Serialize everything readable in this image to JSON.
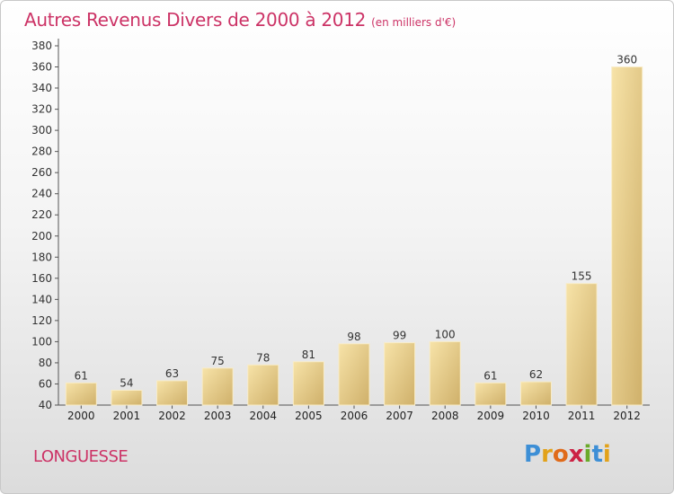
{
  "chart_data": {
    "type": "bar",
    "title": "Autres Revenus Divers de 2000 à 2012",
    "subtitle": "(en milliers d'€)",
    "categories": [
      "2000",
      "2001",
      "2002",
      "2003",
      "2004",
      "2005",
      "2006",
      "2007",
      "2008",
      "2009",
      "2010",
      "2011",
      "2012"
    ],
    "values": [
      61,
      54,
      63,
      75,
      78,
      81,
      98,
      99,
      100,
      61,
      62,
      155,
      360
    ],
    "ylim": [
      40,
      380
    ],
    "yticks": [
      40,
      60,
      80,
      100,
      120,
      140,
      160,
      180,
      200,
      220,
      240,
      260,
      280,
      300,
      320,
      340,
      360,
      380
    ],
    "grid": false,
    "bar_color": "#e8cc80"
  },
  "location": "LONGUESSE",
  "logo": {
    "letters": [
      "P",
      "r",
      "o",
      "x",
      "i",
      "t",
      "i"
    ],
    "colors": [
      "#3d8fd6",
      "#e2a21a",
      "#e06b1a",
      "#cc2244",
      "#6aaa2a",
      "#3d8fd6",
      "#e2a21a"
    ]
  }
}
